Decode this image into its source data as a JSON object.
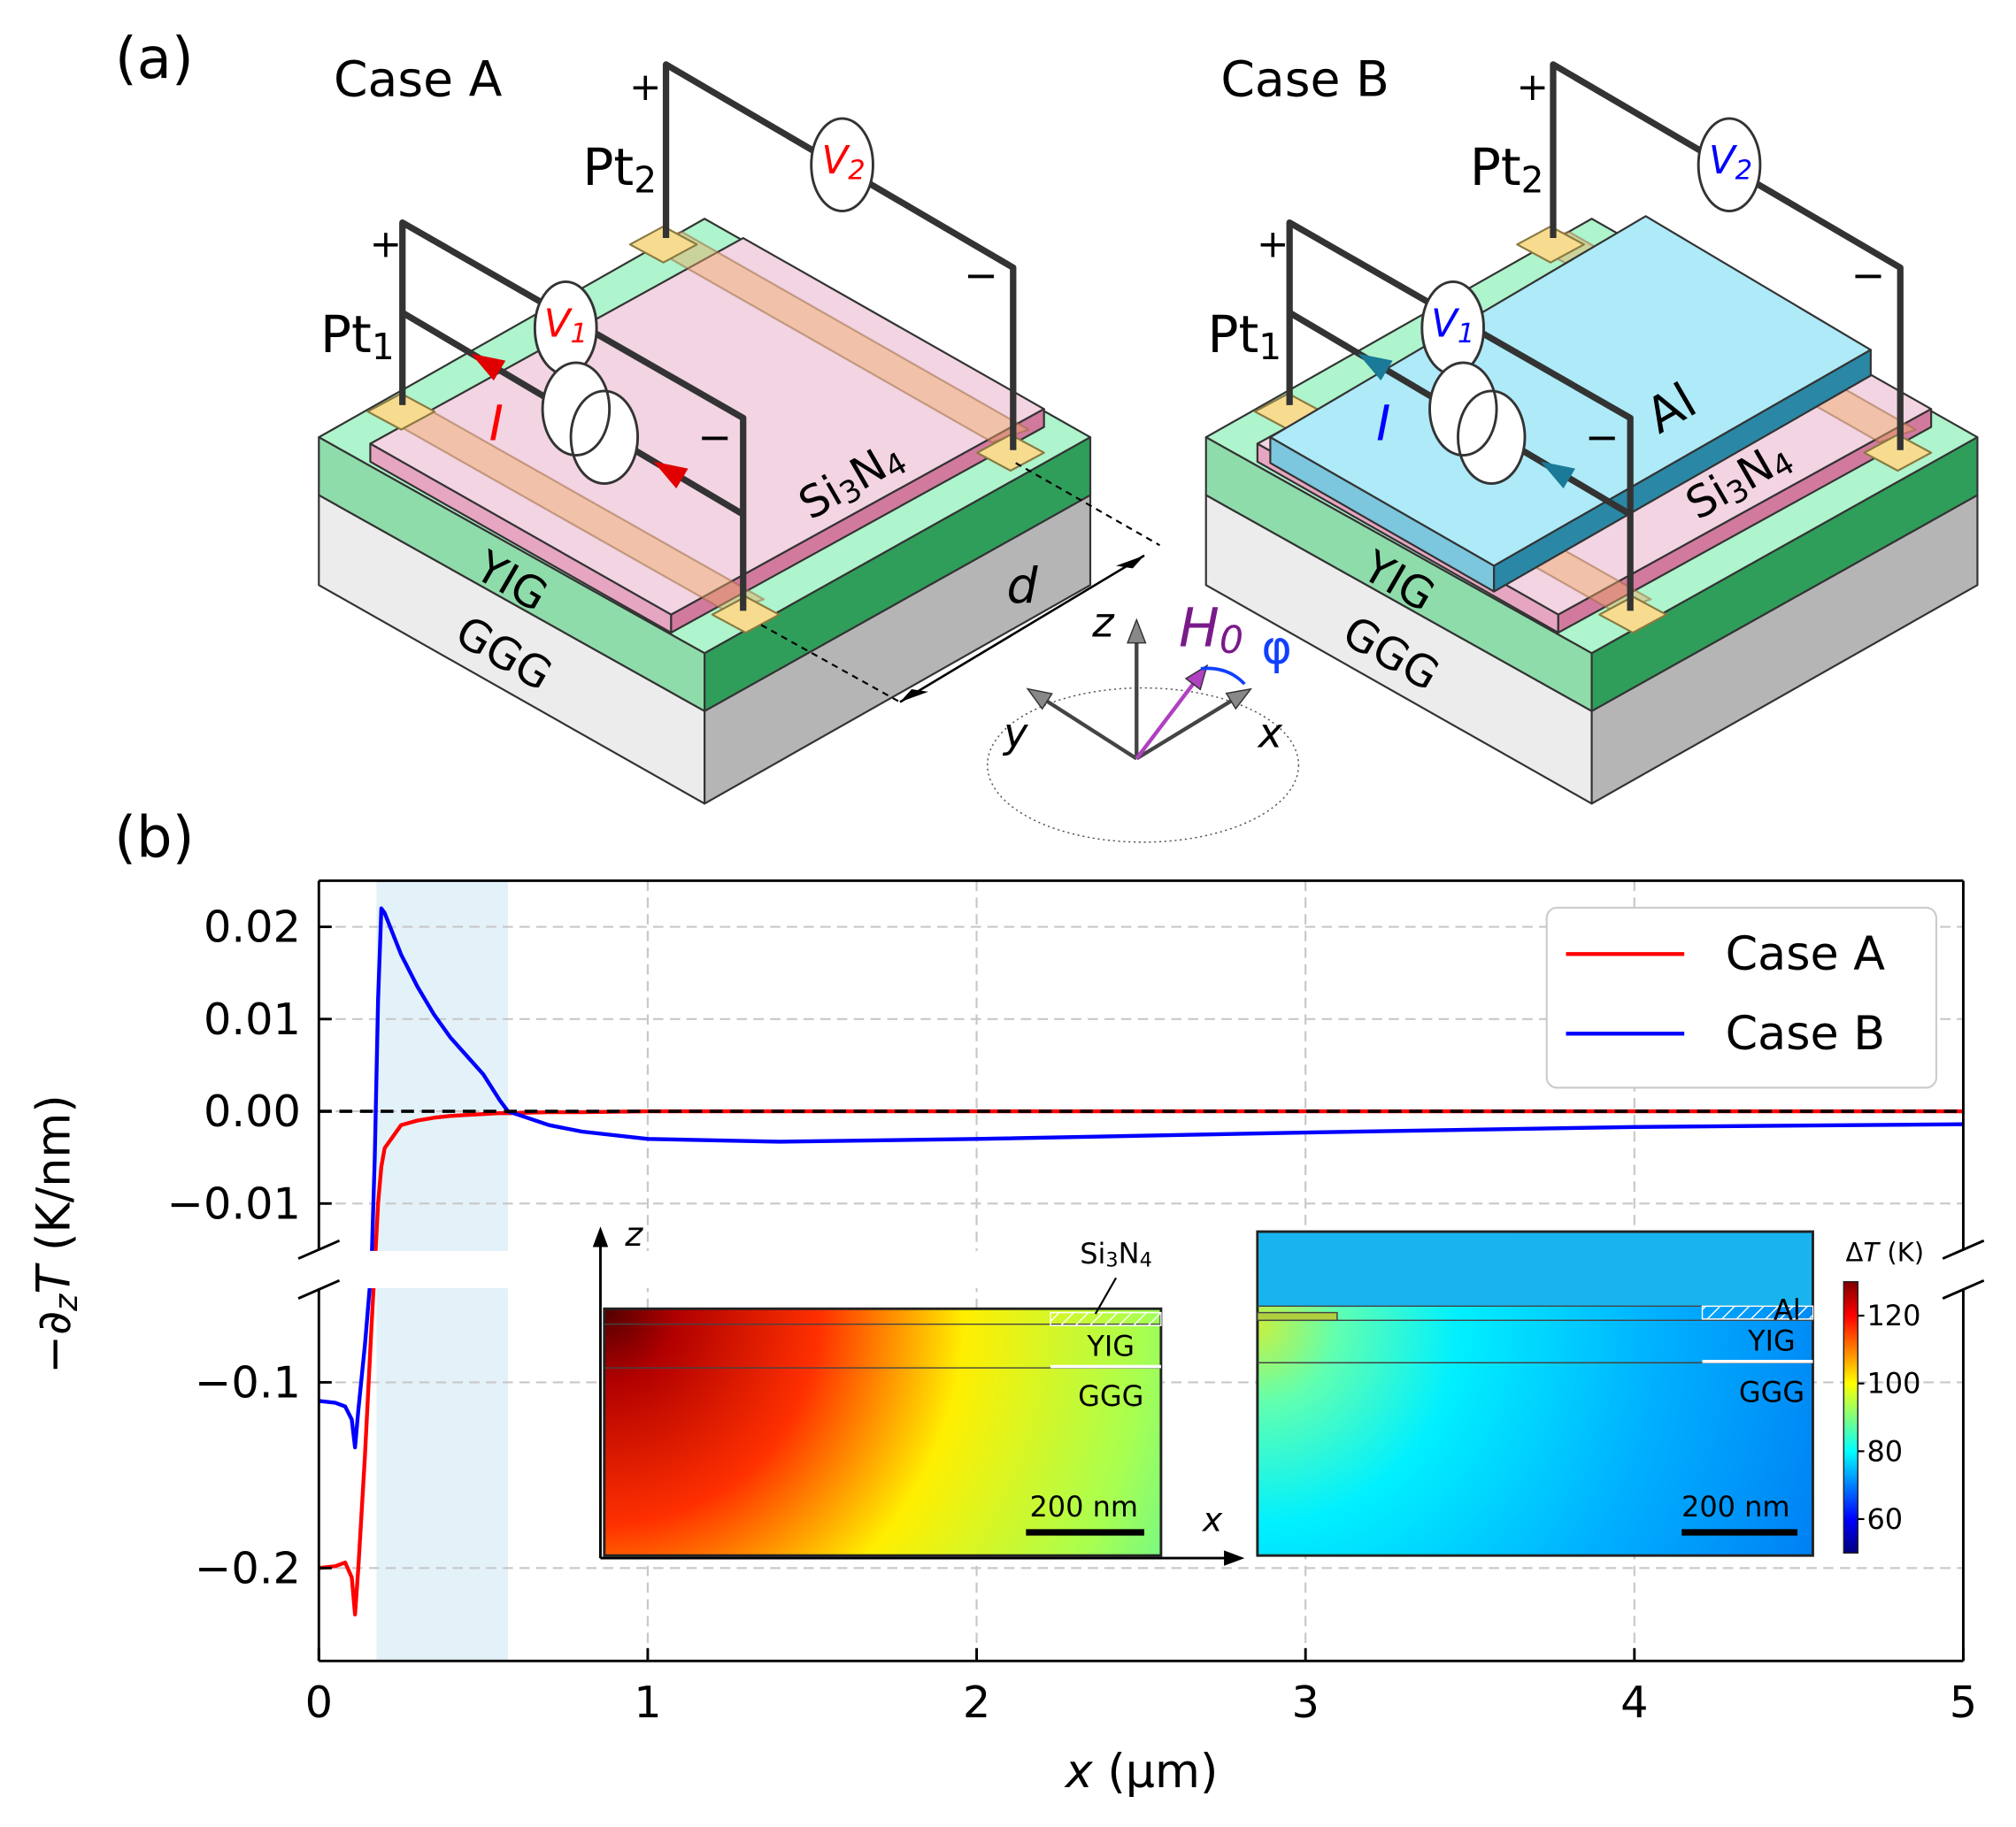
{
  "panel_a": {
    "label": "(a)",
    "plus": "+",
    "minus": "−",
    "distance": "d",
    "cases": [
      {
        "title": "Case A",
        "color": "#ff0000",
        "arrow_color": "#e00000",
        "pt1": [
          "Pt",
          "1"
        ],
        "pt2": [
          "Pt",
          "2"
        ],
        "v1": [
          "V",
          "1"
        ],
        "v2": [
          "V",
          "2"
        ],
        "current": "I",
        "spacer": [
          "Si",
          "3",
          "N",
          "4"
        ],
        "yig": "YIG",
        "ggg": "GGG"
      },
      {
        "title": "Case B",
        "color": "#0000ff",
        "arrow_color": "#1a7a98",
        "pt1": [
          "Pt",
          "1"
        ],
        "pt2": [
          "Pt",
          "2"
        ],
        "v1": [
          "V",
          "1"
        ],
        "v2": [
          "V",
          "2"
        ],
        "current": "I",
        "spacer": [
          "Si",
          "3",
          "N",
          "4"
        ],
        "yig": "YIG",
        "ggg": "GGG",
        "metal": "Al"
      }
    ],
    "axes": {
      "z": "z",
      "y": "y",
      "x": "x",
      "field": [
        "H",
        "0"
      ],
      "angle": "φ"
    }
  },
  "panel_b": {
    "label": "(b)"
  },
  "chart_data": {
    "type": "line",
    "xlabel": [
      "x",
      " (μm)"
    ],
    "ylabel": [
      "−∂",
      "z",
      "T",
      " (K/nm)"
    ],
    "x": [
      0,
      0.05,
      0.08,
      0.1,
      0.11,
      0.12,
      0.14,
      0.16,
      0.17,
      0.18,
      0.19,
      0.2,
      0.25,
      0.3,
      0.35,
      0.4,
      0.45,
      0.5,
      0.55,
      0.575,
      0.7,
      0.8,
      1,
      1.4,
      2,
      3,
      4,
      5
    ],
    "series": [
      {
        "name": "Case A",
        "color": "#ff0000",
        "values": [
          -0.2,
          -0.199,
          -0.197,
          -0.205,
          -0.225,
          -0.2,
          -0.14,
          -0.07,
          -0.03,
          -0.01,
          -0.006,
          -0.004,
          -0.0015,
          -0.001,
          -0.0007,
          -0.0005,
          -0.0004,
          -0.0003,
          -0.0002,
          -0.0002,
          -0.0001,
          -0.0001,
          0,
          0,
          0,
          0,
          0,
          0
        ]
      },
      {
        "name": "Case B",
        "color": "#0000ff",
        "values": [
          -0.11,
          -0.111,
          -0.113,
          -0.12,
          -0.135,
          -0.115,
          -0.08,
          -0.03,
          -0.005,
          0.012,
          0.022,
          0.0215,
          0.017,
          0.0135,
          0.0105,
          0.008,
          0.006,
          0.004,
          0.0012,
          0,
          -0.0015,
          -0.0022,
          -0.003,
          -0.0033,
          -0.003,
          -0.0023,
          -0.0017,
          -0.0014
        ]
      }
    ],
    "xlim": [
      0,
      5
    ],
    "xticks": [
      0,
      1,
      2,
      3,
      4,
      5
    ],
    "ylim": [
      -0.25,
      0.025
    ],
    "ybreak": [
      -0.05,
      -0.015
    ],
    "yticks": [
      {
        "value": -0.2,
        "label": "−0.2"
      },
      {
        "value": -0.1,
        "label": "−0.1"
      },
      {
        "value": -0.01,
        "label": "−0.01"
      },
      {
        "value": 0,
        "label": "0.00"
      },
      0.01,
      0.02
    ],
    "grid": true,
    "legend": "upper right",
    "hline": 0,
    "shaded_x": [
      0.175,
      0.575
    ]
  },
  "insets": {
    "z": "z",
    "x": "x",
    "panels": [
      {
        "spacer": [
          "Si",
          "3",
          "N",
          "4"
        ],
        "yig": "YIG",
        "ggg": "GGG",
        "scale": "200 nm"
      },
      {
        "metal": "Al",
        "yig": "YIG",
        "ggg": "GGG",
        "scale": "200 nm"
      }
    ],
    "colorbar": {
      "label": [
        "Δ",
        "T",
        " (K)"
      ],
      "clim": [
        50,
        130
      ],
      "ticks": [
        60,
        80,
        100,
        120
      ]
    }
  }
}
